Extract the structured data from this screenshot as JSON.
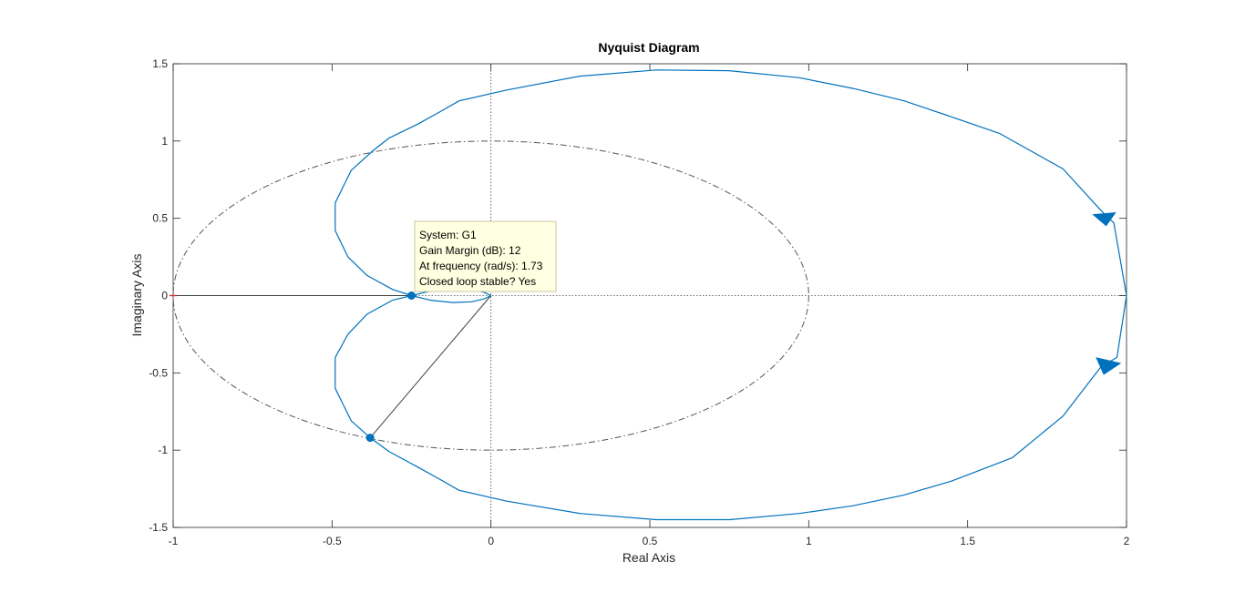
{
  "chart_data": {
    "type": "line",
    "title": "Nyquist Diagram",
    "xlabel": "Real Axis",
    "ylabel": "Imaginary Axis",
    "xlim": [
      -1,
      2
    ],
    "ylim": [
      -1.5,
      1.5
    ],
    "x_ticks": [
      -1,
      -0.5,
      0,
      0.5,
      1,
      1.5,
      2
    ],
    "y_ticks": [
      -1.5,
      -1,
      -0.5,
      0,
      0.5,
      1,
      1.5
    ],
    "x_tick_labels": [
      "-1",
      "-0.5",
      "0",
      "0.5",
      "1",
      "1.5",
      "2"
    ],
    "y_tick_labels": [
      "-1.5",
      "-1",
      "-0.5",
      "0",
      "0.5",
      "1",
      "1.5"
    ],
    "grid": false,
    "series": [
      {
        "color": "#0072bd",
        "style": "solid",
        "upper_branch": [
          [
            2.0,
            0.0
          ],
          [
            1.96,
            0.47
          ],
          [
            1.92,
            0.55
          ],
          [
            1.8,
            0.82
          ],
          [
            1.6,
            1.05
          ],
          [
            1.43,
            1.17
          ],
          [
            1.3,
            1.26
          ],
          [
            1.14,
            1.34
          ],
          [
            0.97,
            1.41
          ],
          [
            0.75,
            1.455
          ],
          [
            0.52,
            1.46
          ],
          [
            0.28,
            1.42
          ],
          [
            0.05,
            1.33
          ],
          [
            -0.1,
            1.26
          ],
          [
            -0.16,
            1.19
          ],
          [
            -0.23,
            1.11
          ],
          [
            -0.32,
            1.02
          ],
          [
            -0.37,
            0.94
          ],
          [
            -0.44,
            0.81
          ],
          [
            -0.49,
            0.6
          ],
          [
            -0.49,
            0.42
          ],
          [
            -0.45,
            0.25
          ],
          [
            -0.39,
            0.13
          ],
          [
            -0.31,
            0.04
          ],
          [
            -0.25,
            0.0
          ],
          [
            -0.19,
            -0.03
          ],
          [
            -0.12,
            -0.045
          ],
          [
            -0.06,
            -0.04
          ],
          [
            -0.02,
            -0.02
          ],
          [
            0.0,
            0.0
          ]
        ],
        "lower_branch": [
          [
            2.0,
            0.0
          ],
          [
            1.97,
            -0.4
          ],
          [
            1.92,
            -0.46
          ],
          [
            1.8,
            -0.78
          ],
          [
            1.64,
            -1.05
          ],
          [
            1.45,
            -1.2
          ],
          [
            1.3,
            -1.29
          ],
          [
            1.14,
            -1.36
          ],
          [
            0.97,
            -1.41
          ],
          [
            0.75,
            -1.45
          ],
          [
            0.52,
            -1.45
          ],
          [
            0.28,
            -1.41
          ],
          [
            0.05,
            -1.33
          ],
          [
            -0.1,
            -1.26
          ],
          [
            -0.16,
            -1.19
          ],
          [
            -0.23,
            -1.11
          ],
          [
            -0.32,
            -1.01
          ],
          [
            -0.38,
            -0.92
          ],
          [
            -0.44,
            -0.81
          ],
          [
            -0.49,
            -0.6
          ],
          [
            -0.49,
            -0.4
          ],
          [
            -0.45,
            -0.25
          ],
          [
            -0.39,
            -0.12
          ],
          [
            -0.31,
            -0.03
          ],
          [
            -0.25,
            0.0
          ],
          [
            -0.19,
            0.03
          ],
          [
            -0.12,
            0.045
          ],
          [
            -0.06,
            0.04
          ],
          [
            -0.02,
            0.02
          ],
          [
            0.0,
            0.0
          ]
        ],
        "arrows": [
          {
            "at": [
              1.93,
              0.5
            ],
            "direction": "down"
          },
          {
            "at": [
              1.94,
              -0.45
            ],
            "direction": "down-left"
          }
        ]
      }
    ],
    "unit_circle": {
      "center": [
        0,
        0
      ],
      "radius": 1,
      "color": "#555555",
      "style": "dash-dot"
    },
    "gain_margin_marker": {
      "x": -0.25,
      "y": 0
    },
    "phase_margin_marker": {
      "x": -0.38,
      "y": -0.92
    },
    "critical_point": {
      "x": -1,
      "y": 0
    }
  },
  "datatip": {
    "line1": "System: G1",
    "line2": "Gain Margin (dB): 12",
    "line3": "At frequency (rad/s): 1.73",
    "line4": "Closed loop stable? Yes"
  }
}
